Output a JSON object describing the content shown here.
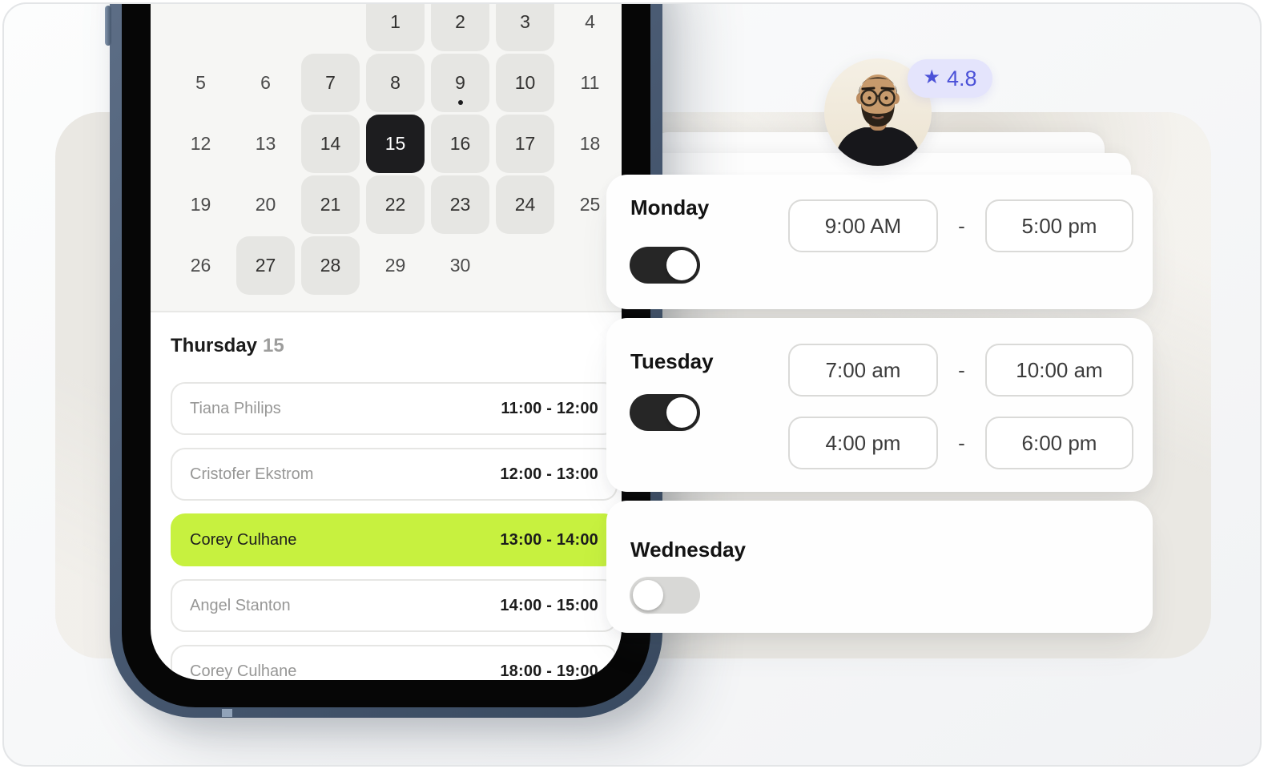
{
  "rating": {
    "value": "4.8",
    "star": "★"
  },
  "calendar": {
    "rows": [
      [
        {
          "d": "",
          "s": "empty"
        },
        {
          "d": "",
          "s": "empty"
        },
        {
          "d": "",
          "s": "empty"
        },
        {
          "d": "1",
          "s": "shaded"
        },
        {
          "d": "2",
          "s": "shaded"
        },
        {
          "d": "3",
          "s": "shaded"
        },
        {
          "d": "4",
          "s": "plain"
        }
      ],
      [
        {
          "d": "5",
          "s": "plain"
        },
        {
          "d": "6",
          "s": "plain"
        },
        {
          "d": "7",
          "s": "shaded"
        },
        {
          "d": "8",
          "s": "shaded"
        },
        {
          "d": "9",
          "s": "shaded",
          "dot": true
        },
        {
          "d": "10",
          "s": "shaded"
        },
        {
          "d": "11",
          "s": "plain"
        }
      ],
      [
        {
          "d": "12",
          "s": "plain"
        },
        {
          "d": "13",
          "s": "plain"
        },
        {
          "d": "14",
          "s": "shaded"
        },
        {
          "d": "15",
          "s": "selected"
        },
        {
          "d": "16",
          "s": "shaded"
        },
        {
          "d": "17",
          "s": "shaded"
        },
        {
          "d": "18",
          "s": "plain"
        }
      ],
      [
        {
          "d": "19",
          "s": "plain"
        },
        {
          "d": "20",
          "s": "plain"
        },
        {
          "d": "21",
          "s": "shaded"
        },
        {
          "d": "22",
          "s": "shaded"
        },
        {
          "d": "23",
          "s": "shaded"
        },
        {
          "d": "24",
          "s": "shaded"
        },
        {
          "d": "25",
          "s": "plain"
        }
      ],
      [
        {
          "d": "26",
          "s": "plain"
        },
        {
          "d": "27",
          "s": "shaded"
        },
        {
          "d": "28",
          "s": "shaded"
        },
        {
          "d": "29",
          "s": "plain"
        },
        {
          "d": "30",
          "s": "plain"
        },
        {
          "d": "",
          "s": "empty"
        },
        {
          "d": "",
          "s": "empty"
        }
      ]
    ]
  },
  "schedule": {
    "day_label": "Thursday",
    "date_label": "15",
    "items": [
      {
        "name": "Tiana Philips",
        "time": "11:00 - 12:00",
        "highlighted": false
      },
      {
        "name": "Cristofer Ekstrom",
        "time": "12:00 - 13:00",
        "highlighted": false
      },
      {
        "name": "Corey Culhane",
        "time": "13:00 - 14:00",
        "highlighted": true
      },
      {
        "name": "Angel Stanton",
        "time": "14:00 - 15:00",
        "highlighted": false
      },
      {
        "name": "Corey Culhane",
        "time": "18:00 - 19:00",
        "highlighted": false
      }
    ]
  },
  "availability": {
    "range_separator": "-",
    "days": [
      {
        "label": "Monday",
        "enabled": true,
        "ranges": [
          {
            "start": "9:00 AM",
            "end": "5:00 pm"
          }
        ]
      },
      {
        "label": "Tuesday",
        "enabled": true,
        "ranges": [
          {
            "start": "7:00 am",
            "end": "10:00 am"
          },
          {
            "start": "4:00 pm",
            "end": "6:00 pm"
          }
        ]
      },
      {
        "label": "Wednesday",
        "enabled": false,
        "ranges": []
      }
    ]
  },
  "colors": {
    "highlight_green": "#c7f13f",
    "badge_bg": "#e4e4fc",
    "badge_text": "#4b51d8",
    "toggle_on": "#262626",
    "selected_day_bg": "#1d1d1f"
  }
}
